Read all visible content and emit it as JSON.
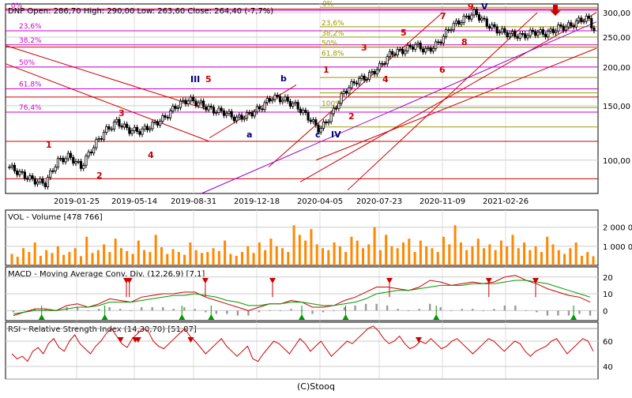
{
  "footer": "(C)Stooq",
  "chart_data": [
    {
      "type": "candlestick",
      "ticker": "DNP",
      "header": "DNP Open: 286,70 High: 290,00 Low: 263,60 Close: 264,40 (-7,7%)",
      "last": {
        "open": 286.7,
        "high": 290.0,
        "low": 263.6,
        "close": 264.4,
        "change": "-7,7%"
      },
      "yscale": "log",
      "ylim": [
        78,
        320
      ],
      "yticks": [
        {
          "v": 300,
          "label": "300,00"
        },
        {
          "v": 250,
          "label": "250,00"
        },
        {
          "v": 200,
          "label": "200,00"
        },
        {
          "v": 150,
          "label": "150,00"
        },
        {
          "v": 100,
          "label": "100,00"
        }
      ],
      "xticks": [
        "2019-01-25",
        "2019-05-14",
        "2019-08-31",
        "2019-12-18",
        "2020-04-05",
        "2020-07-23",
        "2020-11-09",
        "2021-02-26"
      ],
      "grid": true,
      "close_path": [
        [
          0,
          95
        ],
        [
          2,
          90
        ],
        [
          4,
          86
        ],
        [
          6,
          84
        ],
        [
          8,
          99
        ],
        [
          10,
          103
        ],
        [
          12,
          95
        ],
        [
          14,
          110
        ],
        [
          16,
          124
        ],
        [
          18,
          133
        ],
        [
          20,
          125
        ],
        [
          22,
          124
        ],
        [
          24,
          130
        ],
        [
          26,
          137
        ],
        [
          28,
          150
        ],
        [
          30,
          157
        ],
        [
          32,
          152
        ],
        [
          34,
          145
        ],
        [
          36,
          143
        ],
        [
          38,
          136
        ],
        [
          40,
          140
        ],
        [
          42,
          147
        ],
        [
          44,
          160
        ],
        [
          46,
          157
        ],
        [
          48,
          150
        ],
        [
          50,
          138
        ],
        [
          52,
          125
        ],
        [
          54,
          140
        ],
        [
          56,
          165
        ],
        [
          58,
          180
        ],
        [
          60,
          186
        ],
        [
          62,
          200
        ],
        [
          64,
          222
        ],
        [
          66,
          226
        ],
        [
          68,
          236
        ],
        [
          70,
          225
        ],
        [
          72,
          240
        ],
        [
          74,
          270
        ],
        [
          76,
          285
        ],
        [
          78,
          300
        ],
        [
          80,
          275
        ],
        [
          82,
          262
        ],
        [
          84,
          255
        ],
        [
          86,
          252
        ],
        [
          88,
          260
        ],
        [
          90,
          256
        ],
        [
          92,
          268
        ],
        [
          94,
          272
        ],
        [
          96,
          286
        ],
        [
          97,
          287
        ],
        [
          98,
          264
        ]
      ],
      "fib_levels": [
        {
          "label": "0%"
        },
        {
          "label": "23,6%"
        },
        {
          "label": "38,2%"
        },
        {
          "label": "50%"
        },
        {
          "label": "61,8%"
        },
        {
          "label": "76,4%"
        },
        {
          "label": "100%"
        }
      ],
      "fib_right": [
        {
          "label": "0%"
        },
        {
          "label": "23,6%"
        },
        {
          "label": "38,2%"
        },
        {
          "label": "50%"
        },
        {
          "label": "61,8%"
        },
        {
          "label": "100%"
        }
      ],
      "annotations": [
        {
          "text": "1",
          "color": "#cc0000"
        },
        {
          "text": "2",
          "color": "#cc0000"
        },
        {
          "text": "3",
          "color": "#cc0000"
        },
        {
          "text": "4",
          "color": "#cc0000"
        },
        {
          "text": "5",
          "color": "#cc0000"
        },
        {
          "text": "III",
          "color": "#000080"
        },
        {
          "text": "a",
          "color": "#000080"
        },
        {
          "text": "b",
          "color": "#000080"
        },
        {
          "text": "c",
          "color": "#000080"
        },
        {
          "text": "IV",
          "color": "#000080"
        },
        {
          "text": "1",
          "color": "#cc0000"
        },
        {
          "text": "2",
          "color": "#cc0000"
        },
        {
          "text": "3",
          "color": "#cc0000"
        },
        {
          "text": "4",
          "color": "#cc0000"
        },
        {
          "text": "5",
          "color": "#cc0000"
        },
        {
          "text": "6",
          "color": "#cc0000"
        },
        {
          "text": "7",
          "color": "#cc0000"
        },
        {
          "text": "8",
          "color": "#cc0000"
        },
        {
          "text": "9",
          "color": "#cc0000"
        },
        {
          "text": "V",
          "color": "#000080"
        }
      ],
      "colors": {
        "hline": "#cc0000",
        "fib": "#cc00cc",
        "fib2": "#999900",
        "channel": "#cc0000",
        "trend": "#9900cc",
        "candle": "#000000"
      }
    },
    {
      "type": "bar",
      "title": "VOL - Volume [478 766]",
      "ylim": [
        0,
        2900000
      ],
      "yticks": [
        {
          "v": 2000000,
          "label": "2 000 000"
        },
        {
          "v": 1000000,
          "label": "1 000 000"
        }
      ],
      "values": [
        600000,
        450000,
        900000,
        700000,
        1200000,
        500000,
        800000,
        650000,
        1000000,
        550000,
        700000,
        900000,
        480000,
        1500000,
        650000,
        800000,
        1100000,
        700000,
        1400000,
        900000,
        750000,
        600000,
        1300000,
        800000,
        700000,
        1600000,
        950000,
        600000,
        850000,
        700000,
        550000,
        1200000,
        800000,
        650000,
        700000,
        900000,
        750000,
        1300000,
        600000,
        500000,
        700000,
        1000000,
        650000,
        1200000,
        800000,
        1400000,
        1000000,
        900000,
        700000,
        2100000,
        1600000,
        1300000,
        1900000,
        1100000,
        900000,
        800000,
        1200000,
        1000000,
        700000,
        1500000,
        1300000,
        900000,
        1100000,
        2000000,
        800000,
        1600000,
        1000000,
        900000,
        1200000,
        1400000,
        700000,
        1300000,
        1000000,
        900000,
        700000,
        1500000,
        1100000,
        2100000,
        1200000,
        800000,
        1000000,
        1400000,
        900000,
        1100000,
        800000,
        1300000,
        1000000,
        1600000,
        900000,
        1200000,
        800000,
        1000000,
        700000,
        1500000,
        1100000,
        800000,
        600000,
        900000,
        1200000,
        500000,
        700000,
        478766
      ],
      "color": "#ff8800"
    },
    {
      "type": "line",
      "title": "MACD - Moving Average Conv. Div. (12,26,9) [7,1]",
      "ylim": [
        -6,
        26
      ],
      "yticks": [
        {
          "v": 20,
          "label": "20"
        },
        {
          "v": 10,
          "label": "10"
        },
        {
          "v": 0,
          "label": "0"
        }
      ],
      "series": [
        {
          "color": "#cc0000",
          "values": [
            -3,
            -1,
            1,
            1,
            0,
            3,
            4,
            2,
            4,
            7,
            6,
            5,
            8,
            9,
            10,
            10,
            11,
            11,
            8,
            6,
            4,
            2,
            0,
            2,
            4,
            4,
            6,
            5,
            2,
            2,
            3,
            6,
            8,
            11,
            14,
            14,
            13,
            12,
            14,
            18,
            17,
            15,
            16,
            17,
            16,
            17,
            20,
            21,
            18,
            16,
            13,
            11,
            9,
            8,
            5
          ]
        },
        {
          "color": "#009900",
          "values": [
            -2,
            -1,
            0,
            0,
            0,
            1,
            2,
            2,
            3,
            5,
            5,
            5,
            6,
            7,
            8,
            9,
            9,
            10,
            9,
            8,
            6,
            5,
            3,
            3,
            4,
            4,
            5,
            5,
            4,
            3,
            3,
            4,
            5,
            7,
            10,
            11,
            12,
            12,
            13,
            14,
            15,
            15,
            15,
            16,
            16,
            16,
            17,
            18,
            18,
            17,
            16,
            14,
            12,
            10,
            8
          ]
        }
      ],
      "hist": [
        -1,
        0,
        1,
        1,
        0,
        2,
        2,
        0,
        1,
        2,
        1,
        0,
        2,
        2,
        2,
        1,
        2,
        1,
        -1,
        -2,
        -2,
        -3,
        -3,
        -1,
        0,
        0,
        1,
        0,
        -2,
        -1,
        0,
        2,
        3,
        4,
        4,
        3,
        1,
        0,
        1,
        4,
        2,
        0,
        1,
        1,
        0,
        1,
        3,
        3,
        0,
        -1,
        -3,
        -3,
        -3,
        -2,
        -3
      ],
      "signals": {
        "sell": [
          0.205,
          0.2,
          0.335,
          0.45,
          0.65,
          0.9,
          0.9,
          0.82
        ],
        "buy": [
          0.055,
          0.163,
          0.295,
          0.345,
          0.5,
          0.575,
          0.73,
          0.965
        ]
      }
    },
    {
      "type": "line",
      "title": "RSI - Relative Strength Index (14,30,70) [51,87]",
      "ylim": [
        30,
        75
      ],
      "yticks": [
        {
          "v": 60,
          "label": "60"
        },
        {
          "v": 40,
          "label": "40"
        }
      ],
      "levels": [
        30,
        70
      ],
      "values": [
        50,
        46,
        48,
        44,
        52,
        55,
        50,
        58,
        62,
        55,
        52,
        60,
        65,
        58,
        54,
        50,
        56,
        60,
        66,
        70,
        64,
        58,
        55,
        62,
        66,
        70,
        68,
        60,
        56,
        54,
        58,
        62,
        66,
        70,
        64,
        60,
        55,
        50,
        54,
        58,
        62,
        56,
        52,
        48,
        52,
        56,
        46,
        44,
        50,
        55,
        60,
        58,
        54,
        50,
        56,
        62,
        58,
        52,
        56,
        60,
        54,
        48,
        52,
        56,
        60,
        58,
        62,
        66,
        70,
        72,
        68,
        62,
        58,
        60,
        64,
        58,
        54,
        56,
        60,
        58,
        62,
        58,
        54,
        56,
        60,
        62,
        58,
        54,
        50,
        54,
        58,
        62,
        60,
        56,
        52,
        56,
        60,
        58,
        52,
        48,
        52,
        54,
        56,
        60,
        62,
        56,
        50,
        54,
        58,
        62,
        60,
        52
      ],
      "signals": {
        "sell": [
          0.19,
          0.215,
          0.22,
          0.31,
          0.7
        ]
      },
      "color": "#cc0000"
    }
  ]
}
